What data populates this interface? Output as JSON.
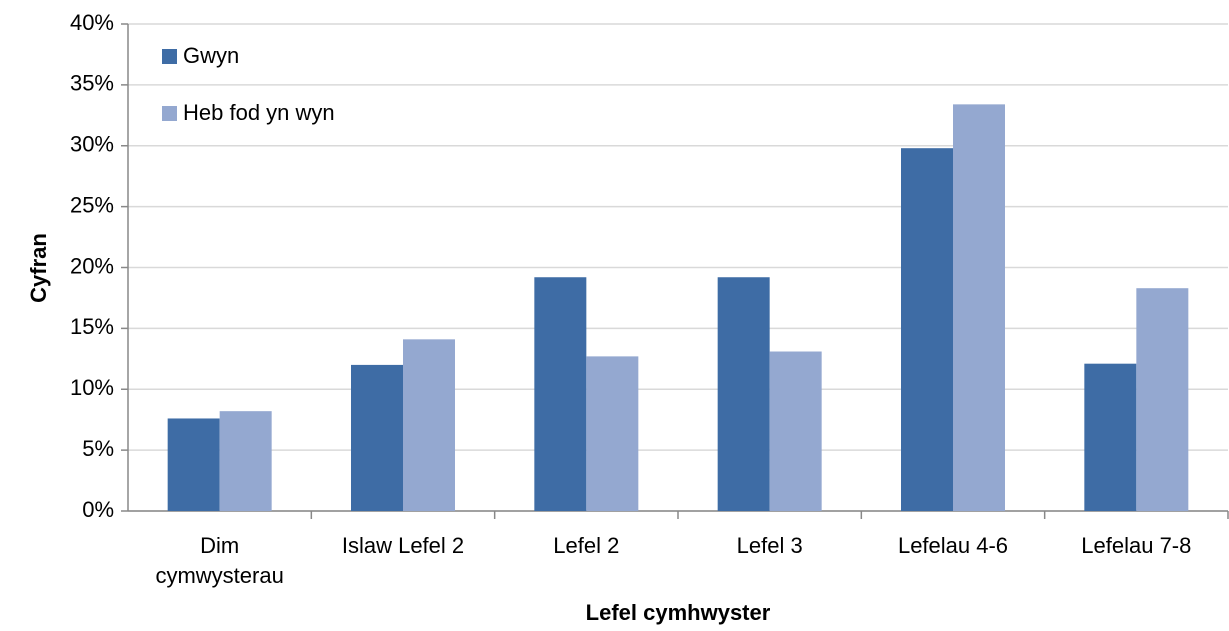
{
  "chart_data": {
    "type": "bar",
    "x_label": "Lefel cymhwyster",
    "y_label": "Cyfran",
    "categories": [
      "Dim cymwysterau",
      "Islaw Lefel 2",
      "Lefel 2",
      "Lefel 3",
      "Lefelau 4-6",
      "Lefelau 7-8"
    ],
    "series": [
      {
        "name": "Gwyn",
        "color": "#3e6ca5",
        "values": [
          7.6,
          12.0,
          19.2,
          19.2,
          29.8,
          12.1
        ]
      },
      {
        "name": "Heb fod yn wyn",
        "color": "#94a8d0",
        "values": [
          8.2,
          14.1,
          12.7,
          13.1,
          33.4,
          18.3
        ]
      }
    ],
    "ylim": [
      0,
      40
    ],
    "yticks": [
      {
        "value": 0,
        "label": "0%"
      },
      {
        "value": 5,
        "label": "5%"
      },
      {
        "value": 10,
        "label": "10%"
      },
      {
        "value": 15,
        "label": "15%"
      },
      {
        "value": 20,
        "label": "20%"
      },
      {
        "value": 25,
        "label": "25%"
      },
      {
        "value": 30,
        "label": "30%"
      },
      {
        "value": 35,
        "label": "35%"
      },
      {
        "value": 40,
        "label": "40%"
      }
    ],
    "grid": true,
    "legend": "top-left"
  }
}
